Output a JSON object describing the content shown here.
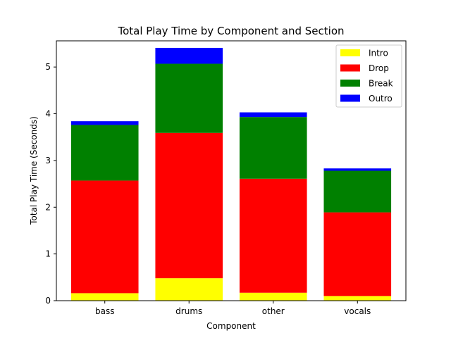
{
  "chart_data": {
    "type": "bar",
    "stacked": true,
    "title": "Total Play Time by Component and Section",
    "xlabel": "Component",
    "ylabel": "Total Play Time (Seconds)",
    "categories": [
      "bass",
      "drums",
      "other",
      "vocals"
    ],
    "ylim": [
      0,
      5.56
    ],
    "yticks": [
      0,
      1,
      2,
      3,
      4,
      5
    ],
    "grid": false,
    "legend_position": "top-right",
    "series": [
      {
        "name": "Intro",
        "color": "#ffff00",
        "values": [
          0.16,
          0.48,
          0.17,
          0.1
        ]
      },
      {
        "name": "Drop",
        "color": "#ff0000",
        "values": [
          2.41,
          3.11,
          2.44,
          1.79
        ]
      },
      {
        "name": "Break",
        "color": "#008000",
        "values": [
          1.19,
          1.48,
          1.32,
          0.89
        ]
      },
      {
        "name": "Outro",
        "color": "#0000ff",
        "values": [
          0.08,
          0.34,
          0.1,
          0.05
        ]
      }
    ]
  }
}
